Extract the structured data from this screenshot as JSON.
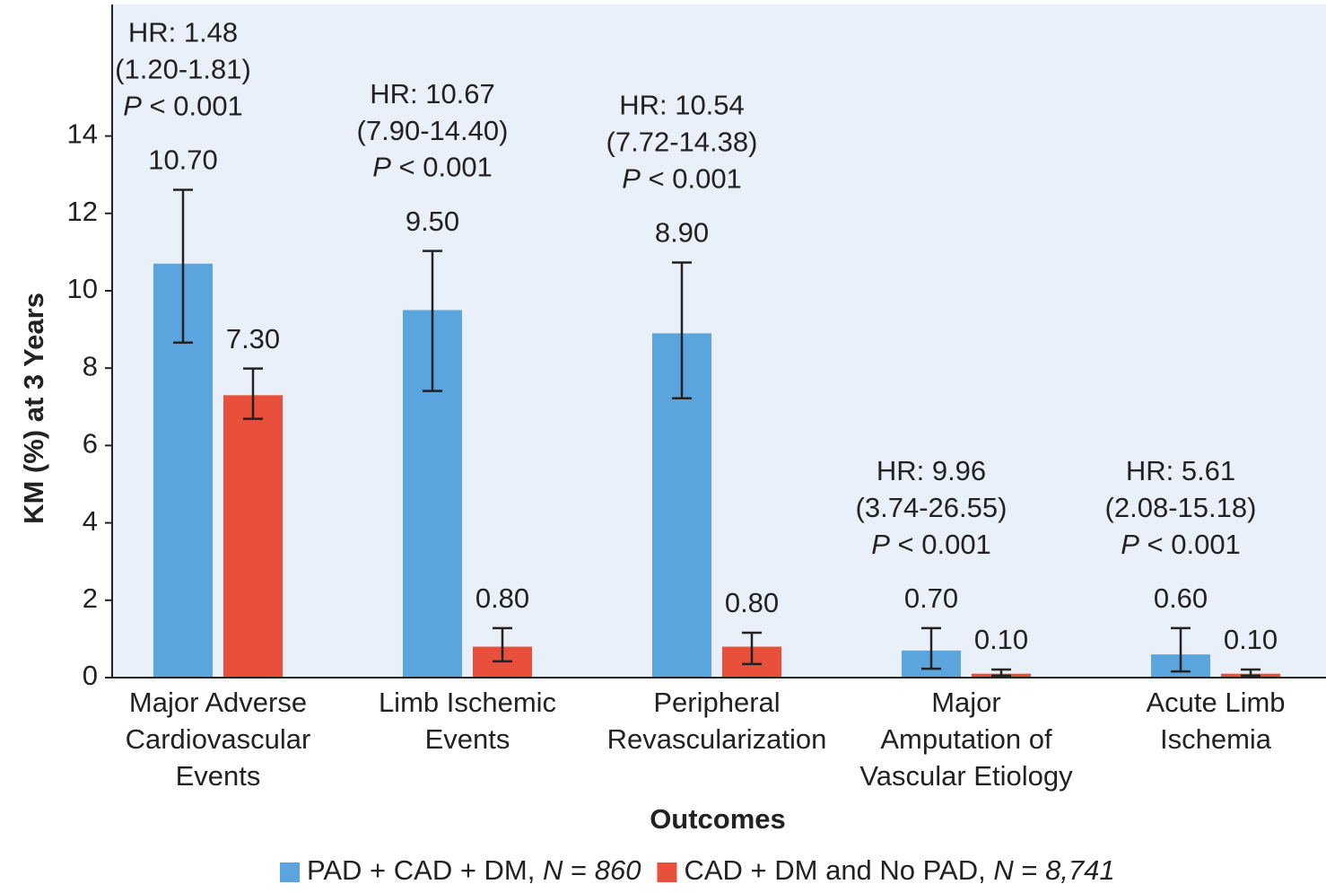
{
  "chart_data": {
    "type": "bar",
    "y_label": "KM (%) at 3 Years",
    "x_label": "Outcomes",
    "categories": [
      "Major Adverse\nCardiovascular\nEvents",
      "Limb Ischemic\nEvents",
      "Peripheral\nRevascularization",
      "Major\nAmputation of\nVascular Etiology",
      "Acute Limb\nIschemia"
    ],
    "series": [
      {
        "name": "PAD + CAD + DM, N = 860",
        "color": "#5aa5de",
        "values": [
          10.7,
          9.5,
          8.9,
          0.7,
          0.6
        ],
        "value_labels": [
          "10.70",
          "9.50",
          "8.90",
          "0.70",
          "0.60"
        ],
        "lower": [
          8.66,
          7.41,
          7.22,
          0.23,
          0.16
        ],
        "upper": [
          12.61,
          11.03,
          10.73,
          1.28,
          1.28
        ]
      },
      {
        "name": "CAD + DM and No PAD, N = 8,741",
        "color": "#e8503c",
        "values": [
          7.3,
          0.8,
          0.8,
          0.1,
          0.1
        ],
        "value_labels": [
          "7.30",
          "0.80",
          "0.80",
          "0.10",
          "0.10"
        ],
        "lower": [
          6.69,
          0.42,
          0.35,
          0.05,
          0.05
        ],
        "upper": [
          7.99,
          1.28,
          1.16,
          0.21,
          0.21
        ]
      }
    ],
    "annotations": [
      {
        "hr": "HR: 1.48",
        "ci": "(1.20-1.81)",
        "p": "P < 0.001"
      },
      {
        "hr": "HR: 10.67",
        "ci": "(7.90-14.40)",
        "p": "P < 0.001"
      },
      {
        "hr": "HR: 10.54",
        "ci": "(7.72-14.38)",
        "p": "P < 0.001"
      },
      {
        "hr": "HR: 9.96",
        "ci": "(3.74-26.55)",
        "p": "P < 0.001"
      },
      {
        "hr": "HR: 5.61",
        "ci": "(2.08-15.18)",
        "p": "P < 0.001"
      }
    ],
    "ylim": [
      0,
      17.4
    ],
    "yticks": [
      0,
      2,
      4,
      6,
      8,
      10,
      12,
      14
    ],
    "legend": "bottom"
  }
}
